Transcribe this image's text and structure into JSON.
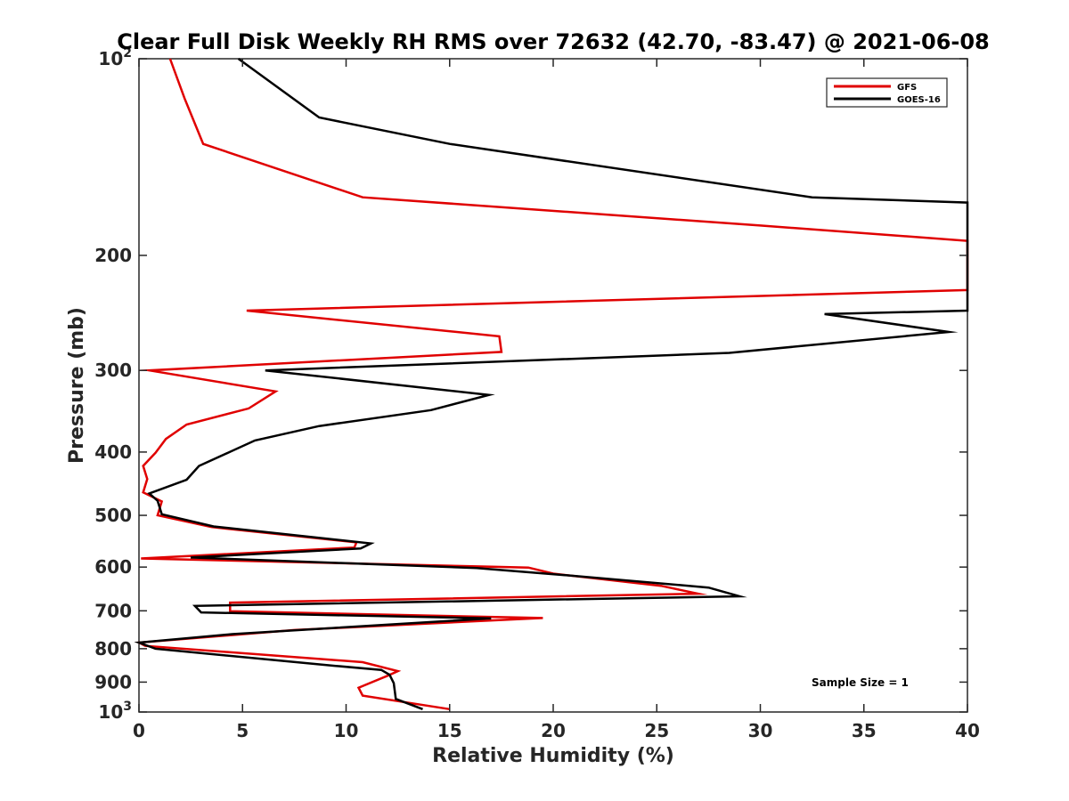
{
  "chart_data": {
    "type": "line",
    "title": "Clear Full Disk Weekly RH RMS over 72632 (42.70, -83.47) @ 2021-06-08",
    "xlabel": "Relative Humidity (%)",
    "ylabel": "Pressure (mb)",
    "xlim": [
      0,
      40
    ],
    "ylim": [
      100,
      1000
    ],
    "y_scale": "log",
    "y_reversed": true,
    "grid": false,
    "legend_position": "top-right",
    "x_ticks": [
      "0",
      "5",
      "10",
      "15",
      "20",
      "25",
      "30",
      "35",
      "40"
    ],
    "x_tick_values": [
      0,
      5,
      10,
      15,
      20,
      25,
      30,
      35,
      40
    ],
    "y_ticks": [
      {
        "value": 100,
        "base": "10",
        "exp": "2"
      },
      {
        "value": 200,
        "label": "200"
      },
      {
        "value": 300,
        "label": "300"
      },
      {
        "value": 400,
        "label": "400"
      },
      {
        "value": 500,
        "label": "500"
      },
      {
        "value": 600,
        "label": "600"
      },
      {
        "value": 700,
        "label": "700"
      },
      {
        "value": 800,
        "label": "800"
      },
      {
        "value": 900,
        "label": "900"
      },
      {
        "value": 1000,
        "base": "10",
        "exp": "3"
      }
    ],
    "annotation": "Sample Size = 1",
    "series": [
      {
        "name": "GFS",
        "color": "#e00000",
        "points": [
          [
            1.5,
            100
          ],
          [
            2.2,
            115
          ],
          [
            3.1,
            135
          ],
          [
            10.8,
            163
          ],
          [
            30,
            180
          ],
          [
            40,
            190
          ],
          [
            40,
            226
          ],
          [
            5.2,
            243
          ],
          [
            17.4,
            266
          ],
          [
            17.5,
            281
          ],
          [
            0.5,
            300
          ],
          [
            6.6,
            323
          ],
          [
            5.3,
            343
          ],
          [
            2.3,
            363
          ],
          [
            1.3,
            382
          ],
          [
            0.8,
            401
          ],
          [
            0.2,
            420
          ],
          [
            0.4,
            440
          ],
          [
            0.2,
            461
          ],
          [
            1.1,
            476
          ],
          [
            0.9,
            500
          ],
          [
            3.5,
            521
          ],
          [
            10.5,
            550
          ],
          [
            10.4,
            560
          ],
          [
            0.1,
            582
          ],
          [
            18.8,
            601
          ],
          [
            20.0,
            614
          ],
          [
            25.2,
            641
          ],
          [
            27.0,
            659
          ],
          [
            4.4,
            680
          ],
          [
            4.4,
            701
          ],
          [
            19.5,
            718
          ],
          [
            7.5,
            749
          ],
          [
            0.0,
            783
          ],
          [
            0.3,
            792
          ],
          [
            10.8,
            839
          ],
          [
            12.5,
            866
          ],
          [
            12.0,
            880
          ],
          [
            10.6,
            918
          ],
          [
            10.8,
            944
          ],
          [
            15.0,
            990
          ]
        ]
      },
      {
        "name": "GOES-16",
        "color": "#000000",
        "points": [
          [
            4.8,
            100
          ],
          [
            8.7,
            123
          ],
          [
            15.0,
            135
          ],
          [
            32.5,
            163
          ],
          [
            40,
            166
          ],
          [
            40,
            243
          ],
          [
            33.1,
            246
          ],
          [
            39.1,
            262
          ],
          [
            28.5,
            282
          ],
          [
            6.1,
            300
          ],
          [
            16.9,
            327
          ],
          [
            14.1,
            345
          ],
          [
            8.7,
            365
          ],
          [
            5.6,
            384
          ],
          [
            2.9,
            420
          ],
          [
            2.3,
            441
          ],
          [
            0.5,
            463
          ],
          [
            0.9,
            475
          ],
          [
            1.1,
            498
          ],
          [
            3.6,
            520
          ],
          [
            11.2,
            552
          ],
          [
            10.7,
            562
          ],
          [
            2.5,
            580
          ],
          [
            16.3,
            602
          ],
          [
            20.5,
            617
          ],
          [
            27.5,
            645
          ],
          [
            29.0,
            665
          ],
          [
            2.7,
            688
          ],
          [
            3.0,
            704
          ],
          [
            17.0,
            719
          ],
          [
            4.5,
            760
          ],
          [
            0.0,
            783
          ],
          [
            0.8,
            800
          ],
          [
            9.5,
            850
          ],
          [
            11.7,
            862
          ],
          [
            12.1,
            877
          ],
          [
            12.3,
            903
          ],
          [
            12.4,
            955
          ],
          [
            13.7,
            990
          ]
        ]
      }
    ]
  }
}
